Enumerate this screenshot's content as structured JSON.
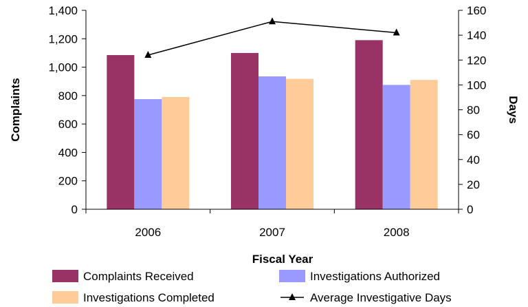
{
  "chart_data": {
    "type": "bar",
    "categories": [
      "2006",
      "2007",
      "2008"
    ],
    "xlabel": "Fiscal Year",
    "ylabel": "Complaints",
    "y2label": "Days",
    "ylim": [
      0,
      1400
    ],
    "y2lim": [
      0,
      160
    ],
    "yticks": [
      "0",
      "200",
      "400",
      "600",
      "800",
      "1,000",
      "1,200",
      "1,400"
    ],
    "y2ticks": [
      "0",
      "20",
      "40",
      "60",
      "80",
      "100",
      "120",
      "140",
      "160"
    ],
    "grid": false,
    "legend_position": "bottom",
    "series": [
      {
        "name": "Complaints Received",
        "type": "bar",
        "axis": "left",
        "color": "#993366",
        "values": [
          1085,
          1100,
          1190
        ]
      },
      {
        "name": "Investigations Authorized",
        "type": "bar",
        "axis": "left",
        "color": "#9999ff",
        "values": [
          775,
          935,
          875
        ]
      },
      {
        "name": "Investigations Completed",
        "type": "bar",
        "axis": "left",
        "color": "#ffcc99",
        "values": [
          790,
          918,
          910
        ]
      },
      {
        "name": "Average Investigative Days",
        "type": "line",
        "axis": "right",
        "color": "#000000",
        "marker": "triangle",
        "values": [
          124,
          151,
          142
        ]
      }
    ]
  }
}
